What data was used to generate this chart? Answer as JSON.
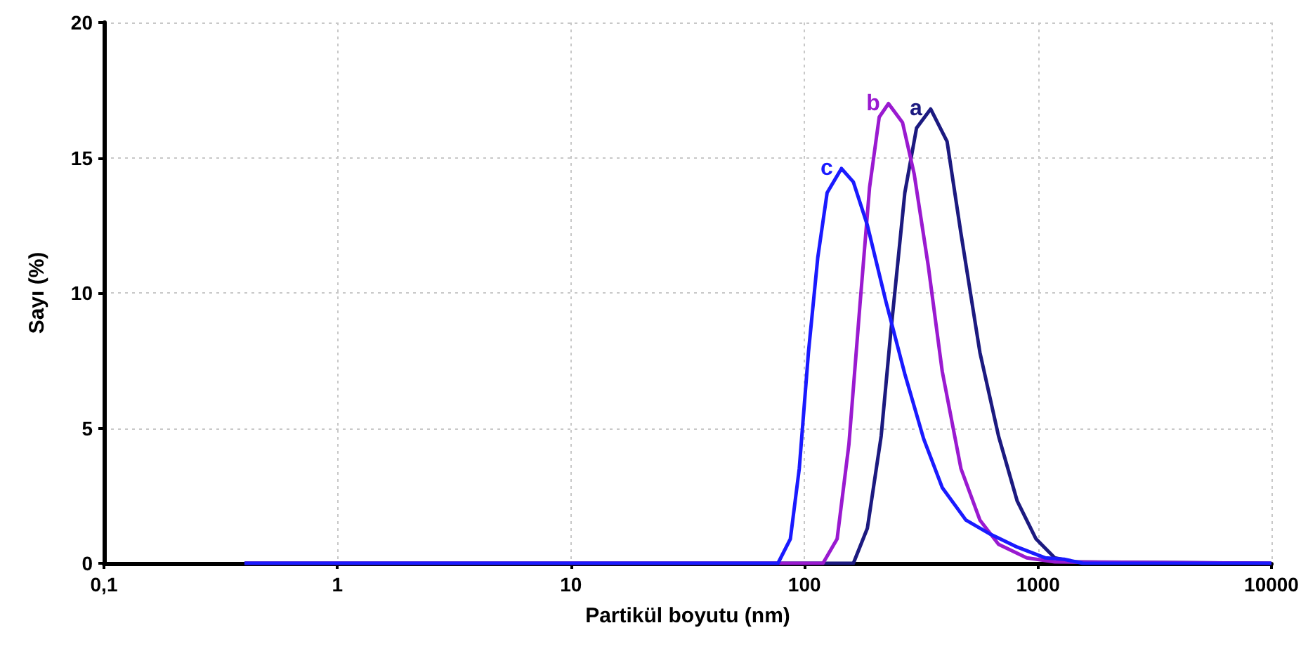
{
  "chart_data": {
    "type": "line",
    "xlabel": "Partikül boyutu (nm)",
    "ylabel": "Sayı (%)",
    "log": "x",
    "xlim": [
      0.1,
      10000
    ],
    "xticks": [
      {
        "value": 0.1,
        "label": "0,1"
      },
      1,
      10,
      100,
      1000,
      10000
    ],
    "ylim": [
      0,
      20
    ],
    "yticks": [
      0,
      5,
      10,
      15,
      20
    ],
    "grid": true,
    "marker": "none",
    "line_style": "solid",
    "series": [
      {
        "name": "a",
        "color": "#1c1a80",
        "x": [
          0.4,
          162,
          186,
          213,
          234,
          269,
          302,
          347,
          408,
          468,
          564,
          678,
          815,
          981,
          1180,
          1420,
          10000
        ],
        "values": [
          0,
          0,
          1.3,
          4.7,
          8.5,
          13.7,
          16.1,
          16.8,
          15.6,
          12.2,
          7.8,
          4.7,
          2.3,
          0.9,
          0.2,
          0.05,
          0
        ]
      },
      {
        "name": "b",
        "color": "#9a1ad0",
        "x": [
          0.4,
          120,
          138,
          155,
          173,
          190,
          209,
          229,
          263,
          295,
          339,
          389,
          468,
          564,
          678,
          895,
          1180,
          10000
        ],
        "values": [
          0,
          0,
          0.9,
          4.4,
          9.6,
          13.9,
          16.5,
          17.0,
          16.3,
          14.4,
          11.0,
          7.1,
          3.5,
          1.6,
          0.7,
          0.2,
          0.05,
          0
        ]
      },
      {
        "name": "c",
        "color": "#1a1aff",
        "x": [
          0.4,
          77,
          87,
          95,
          104,
          114,
          125,
          144,
          162,
          186,
          223,
          269,
          324,
          389,
          491,
          618,
          815,
          1076,
          1294,
          1560,
          10000
        ],
        "values": [
          0,
          0,
          0.9,
          3.5,
          7.8,
          11.3,
          13.7,
          14.6,
          14.1,
          12.5,
          9.7,
          7.0,
          4.6,
          2.8,
          1.6,
          1.1,
          0.6,
          0.2,
          0.15,
          0,
          0
        ]
      }
    ]
  }
}
